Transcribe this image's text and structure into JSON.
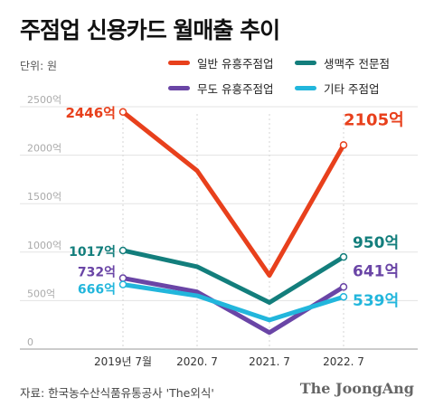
{
  "title": "주점업 신용카드 월매출 추이",
  "unit": "단위: 원",
  "source": "자료: 한국농수산식품유통공사 'The외식'",
  "brand": "The JoongAng",
  "chart_data": {
    "type": "line",
    "categories": [
      "2019년 7월",
      "2020. 7",
      "2021. 7",
      "2022. 7"
    ],
    "ylim": [
      0,
      2500
    ],
    "yticks": [
      "0",
      "500억",
      "1000억",
      "1500억",
      "2000억",
      "2500억"
    ],
    "ytick_values": [
      0,
      500,
      1000,
      1500,
      2000,
      2500
    ],
    "grid": true,
    "legend_position": "top-right",
    "series": [
      {
        "name": "일반 유흥주점업",
        "color": "#e8401c",
        "values": [
          2446,
          1840,
          760,
          2105
        ],
        "labels": [
          "2446억",
          "",
          "",
          "2105억"
        ]
      },
      {
        "name": "생맥주 전문점",
        "color": "#137e7c",
        "values": [
          1017,
          850,
          480,
          950
        ],
        "labels": [
          "1017억",
          "",
          "",
          "950억"
        ]
      },
      {
        "name": "무도 유흥주점업",
        "color": "#6a45a6",
        "values": [
          732,
          590,
          170,
          641
        ],
        "labels": [
          "732억",
          "",
          "",
          "641억"
        ]
      },
      {
        "name": "기타 주점업",
        "color": "#22b6dc",
        "values": [
          666,
          550,
          300,
          539
        ],
        "labels": [
          "666억",
          "",
          "",
          "539억"
        ]
      }
    ]
  }
}
